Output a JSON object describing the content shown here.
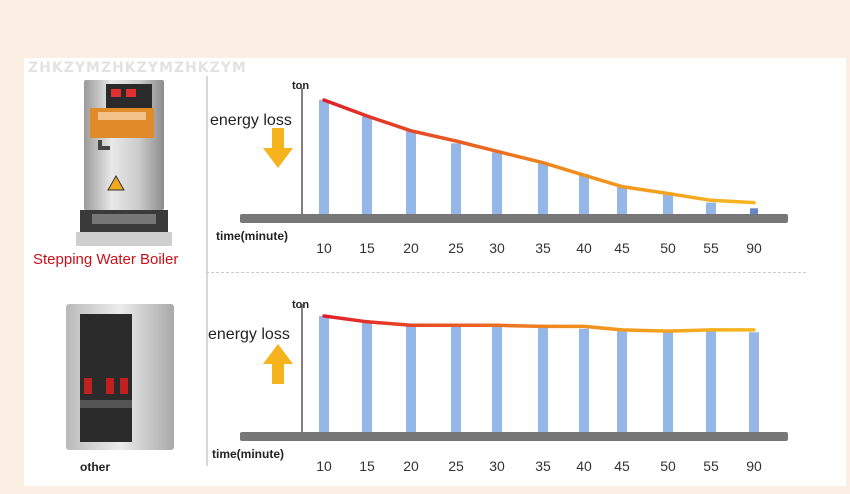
{
  "watermark": "ZHKZYMZHKZYMZHKZYM",
  "colors": {
    "bar": "#8fb3e6",
    "axis": "#777777",
    "line_start": "#e0202a",
    "line_end": "#f5b820",
    "arrow": "#f5b31c"
  },
  "charts": [
    {
      "product_label": "Stepping Water Boiler",
      "product_icon": "stepping-water-boiler-image",
      "ylabel": "ton",
      "annotation": "energy loss",
      "arrow_direction": "down",
      "xlabel": "time(minute)"
    },
    {
      "product_label": "other",
      "product_icon": "other-water-boiler-image",
      "ylabel": "ton",
      "annotation": "energy loss",
      "arrow_direction": "up",
      "xlabel": "time(minute)"
    }
  ],
  "chart_data": [
    {
      "type": "bar",
      "categories": [
        "10",
        "15",
        "20",
        "25",
        "30",
        "35",
        "40",
        "45",
        "50",
        "55",
        "90"
      ],
      "values": [
        1.0,
        0.86,
        0.73,
        0.62,
        0.54,
        0.45,
        0.35,
        0.24,
        0.17,
        0.1,
        0.05
      ],
      "line_values": [
        1.0,
        0.86,
        0.73,
        0.64,
        0.55,
        0.45,
        0.34,
        0.24,
        0.18,
        0.12,
        0.1
      ],
      "title": "",
      "xlabel": "time(minute)",
      "ylabel": "ton",
      "ylim": [
        0,
        1.0
      ],
      "grid": false
    },
    {
      "type": "bar",
      "categories": [
        "10",
        "15",
        "20",
        "25",
        "30",
        "35",
        "40",
        "45",
        "50",
        "55",
        "90"
      ],
      "values": [
        1.0,
        0.95,
        0.92,
        0.91,
        0.91,
        0.9,
        0.89,
        0.87,
        0.87,
        0.87,
        0.86
      ],
      "line_values": [
        1.0,
        0.95,
        0.92,
        0.92,
        0.92,
        0.91,
        0.91,
        0.88,
        0.87,
        0.88,
        0.88
      ],
      "title": "",
      "xlabel": "time(minute)",
      "ylabel": "ton",
      "ylim": [
        0,
        1.0
      ],
      "grid": false
    }
  ]
}
